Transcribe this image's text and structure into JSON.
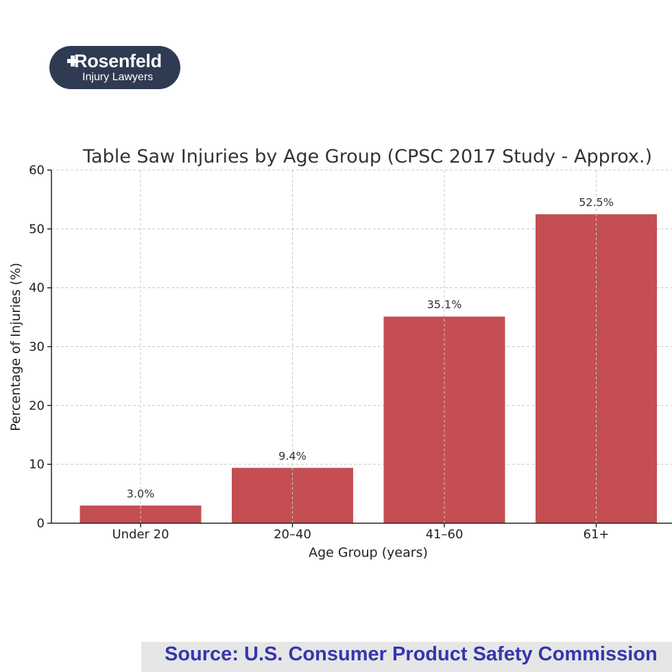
{
  "logo": {
    "name": "Rosenfeld",
    "tagline": "Injury Lawyers",
    "background_color": "#2f3b52"
  },
  "chart_data": {
    "type": "bar",
    "title": "Table Saw Injuries by Age Group (CPSC 2017 Study - Approx.)",
    "xlabel": "Age Group (years)",
    "ylabel": "Percentage of Injuries (%)",
    "categories": [
      "Under 20",
      "20–40",
      "41–60",
      "61+"
    ],
    "values": [
      3.0,
      9.4,
      35.1,
      52.5
    ],
    "data_labels": [
      "3.0%",
      "9.4%",
      "35.1%",
      "52.5%"
    ],
    "ylim": [
      0,
      60
    ],
    "yticks": [
      0,
      10,
      20,
      30,
      40,
      50,
      60
    ],
    "grid": true,
    "bar_color": "#c44e52"
  },
  "source": {
    "text": "Source: U.S. Consumer Product Safety Commission",
    "text_color": "#3636b0",
    "background_color": "#e6e6e6"
  }
}
